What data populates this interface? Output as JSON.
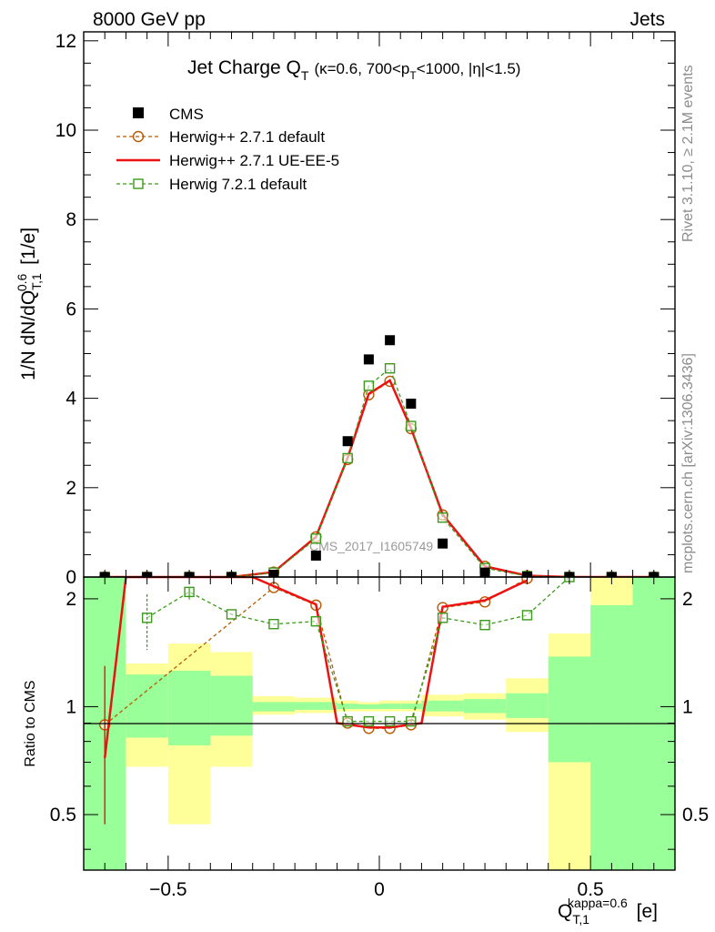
{
  "header": {
    "left": "8000 GeV pp",
    "right": "Jets"
  },
  "side_text": {
    "rivet": "Rivet 3.1.10, ≥ 2.1M events",
    "mcplots": "mcplots.cern.ch [arXiv:1306.3436]"
  },
  "watermark": "CMS_2017_I1605749",
  "chart_data": {
    "type": "scatter",
    "title_main": "Jet Charge Q",
    "title_sub": "T",
    "title_cond_1": "(κ=0.6, 700<p",
    "title_cond_2": "T",
    "title_cond_3": "<1000, |η|<1.5)",
    "ylabel": "1/N dN/dQ_{T,1}^{0.6} [1/e]",
    "ratio_ylabel": "Ratio to CMS",
    "xlabel": "Q_{T,1}^{kappa=0.6} [e]",
    "xlim": [
      -0.7,
      0.7
    ],
    "ylim": [
      0,
      12.2
    ],
    "ratio_ylim": [
      0.35,
      2.3
    ],
    "ratio_scale": "log",
    "x_ticks": [
      "−0.5",
      "0",
      "0.5"
    ],
    "y_ticks": [
      "0",
      "2",
      "4",
      "6",
      "8",
      "10",
      "12"
    ],
    "ratio_ticks": [
      "0.5",
      "1",
      "2"
    ],
    "legend": {
      "position": "top-left"
    },
    "x": [
      -0.65,
      -0.55,
      -0.45,
      -0.35,
      -0.25,
      -0.15,
      -0.075,
      -0.025,
      0.025,
      0.075,
      0.15,
      0.25,
      0.35,
      0.45,
      0.55,
      0.65
    ],
    "series": [
      {
        "name": "CMS",
        "color": "#000000",
        "marker": "filled-square",
        "values": [
          0.0,
          0.0,
          0.0,
          0.0,
          0.05,
          0.48,
          3.04,
          4.87,
          5.3,
          3.88,
          0.75,
          0.1,
          0.01,
          0.0,
          0.0,
          0.0
        ]
      },
      {
        "name": "Herwig++ 2.7.1 default",
        "color": "#b85a00",
        "marker": "open-circle",
        "line": "dashed",
        "values": [
          0.0,
          0.0,
          0.0,
          0.0,
          0.11,
          0.9,
          2.63,
          4.08,
          4.38,
          3.32,
          1.39,
          0.24,
          0.03,
          0.0,
          0.0,
          0.0
        ]
      },
      {
        "name": "Herwig++ 2.7.1 UE-EE-5",
        "color": "#ee1111",
        "marker": "none",
        "line": "solid",
        "values": [
          0.0,
          0.0,
          0.0,
          0.0,
          0.11,
          0.9,
          2.67,
          4.1,
          4.4,
          3.33,
          1.4,
          0.24,
          0.03,
          0.0,
          0.0,
          0.0
        ]
      },
      {
        "name": "Herwig 7.2.1 default",
        "color": "#3a9a1a",
        "marker": "open-square",
        "line": "dashed",
        "values": [
          0.0,
          0.0,
          0.0,
          0.0,
          0.1,
          0.86,
          2.66,
          4.28,
          4.67,
          3.38,
          1.33,
          0.2,
          0.02,
          0.0,
          0.0,
          0.0
        ]
      }
    ],
    "ratio_series": [
      {
        "name": "Herwig++ 2.7.1 default",
        "color": "#b85a00",
        "marker": "open-circle",
        "line": "dashed",
        "x": [
          -0.65,
          -0.25,
          -0.15,
          -0.075,
          -0.025,
          0.025,
          0.075,
          0.15,
          0.25,
          0.35
        ],
        "values": [
          0.89,
          2.15,
          1.92,
          0.9,
          0.87,
          0.87,
          0.89,
          1.89,
          1.96,
          2.28
        ]
      },
      {
        "name": "Herwig++ 2.7.1 UE-EE-5",
        "color": "#ee1111",
        "marker": "none",
        "line": "solid",
        "x": [
          -0.65,
          -0.6,
          -0.3,
          -0.15,
          -0.1,
          -0.025,
          0.025,
          0.1,
          0.15,
          0.25,
          0.35
        ],
        "values": [
          0.72,
          2.3,
          2.3,
          1.93,
          0.9,
          0.875,
          0.875,
          0.9,
          1.9,
          1.98,
          2.25
        ]
      },
      {
        "name": "Herwig 7.2.1 default",
        "color": "#3a9a1a",
        "marker": "open-square",
        "line": "dashed",
        "x": [
          -0.55,
          -0.45,
          -0.35,
          -0.25,
          -0.15,
          -0.075,
          -0.025,
          0.025,
          0.075,
          0.15,
          0.25,
          0.35,
          0.45
        ],
        "values": [
          1.77,
          2.09,
          1.81,
          1.7,
          1.73,
          0.91,
          0.91,
          0.91,
          0.91,
          1.77,
          1.69,
          1.8,
          2.3
        ]
      }
    ],
    "ratio_bands": [
      {
        "x0": -0.7,
        "x1": -0.6,
        "yellow": [
          0.35,
          2.3
        ],
        "green": [
          0.35,
          2.3
        ]
      },
      {
        "x0": -0.6,
        "x1": -0.5,
        "yellow": [
          0.68,
          1.32
        ],
        "green": [
          0.82,
          1.23
        ]
      },
      {
        "x0": -0.5,
        "x1": -0.4,
        "yellow": [
          0.47,
          1.5
        ],
        "green": [
          0.78,
          1.26
        ]
      },
      {
        "x0": -0.4,
        "x1": -0.3,
        "yellow": [
          0.68,
          1.42
        ],
        "green": [
          0.83,
          1.22
        ]
      },
      {
        "x0": -0.3,
        "x1": -0.2,
        "yellow": [
          0.95,
          1.07
        ],
        "green": [
          0.97,
          1.03
        ]
      },
      {
        "x0": -0.2,
        "x1": -0.1,
        "yellow": [
          0.96,
          1.06
        ],
        "green": [
          0.98,
          1.03
        ]
      },
      {
        "x0": -0.1,
        "x1": -0.05,
        "yellow": [
          0.97,
          1.04
        ],
        "green": [
          0.985,
          1.02
        ]
      },
      {
        "x0": -0.05,
        "x1": 0.0,
        "yellow": [
          0.97,
          1.03
        ],
        "green": [
          0.985,
          1.015
        ]
      },
      {
        "x0": 0.0,
        "x1": 0.05,
        "yellow": [
          0.97,
          1.04
        ],
        "green": [
          0.985,
          1.02
        ]
      },
      {
        "x0": 0.05,
        "x1": 0.1,
        "yellow": [
          0.97,
          1.04
        ],
        "green": [
          0.985,
          1.02
        ]
      },
      {
        "x0": 0.1,
        "x1": 0.2,
        "yellow": [
          0.94,
          1.08
        ],
        "green": [
          0.97,
          1.04
        ]
      },
      {
        "x0": 0.2,
        "x1": 0.3,
        "yellow": [
          0.92,
          1.09
        ],
        "green": [
          0.96,
          1.05
        ]
      },
      {
        "x0": 0.3,
        "x1": 0.4,
        "yellow": [
          0.85,
          1.2
        ],
        "green": [
          0.93,
          1.09
        ]
      },
      {
        "x0": 0.4,
        "x1": 0.5,
        "yellow": [
          0.35,
          1.6
        ],
        "green": [
          0.7,
          1.38
        ]
      },
      {
        "x0": 0.5,
        "x1": 0.6,
        "yellow": [
          0.35,
          2.3
        ],
        "green": [
          0.35,
          1.92
        ]
      },
      {
        "x0": 0.6,
        "x1": 0.7,
        "yellow": [
          0.35,
          2.3
        ],
        "green": [
          0.35,
          2.3
        ]
      }
    ]
  }
}
